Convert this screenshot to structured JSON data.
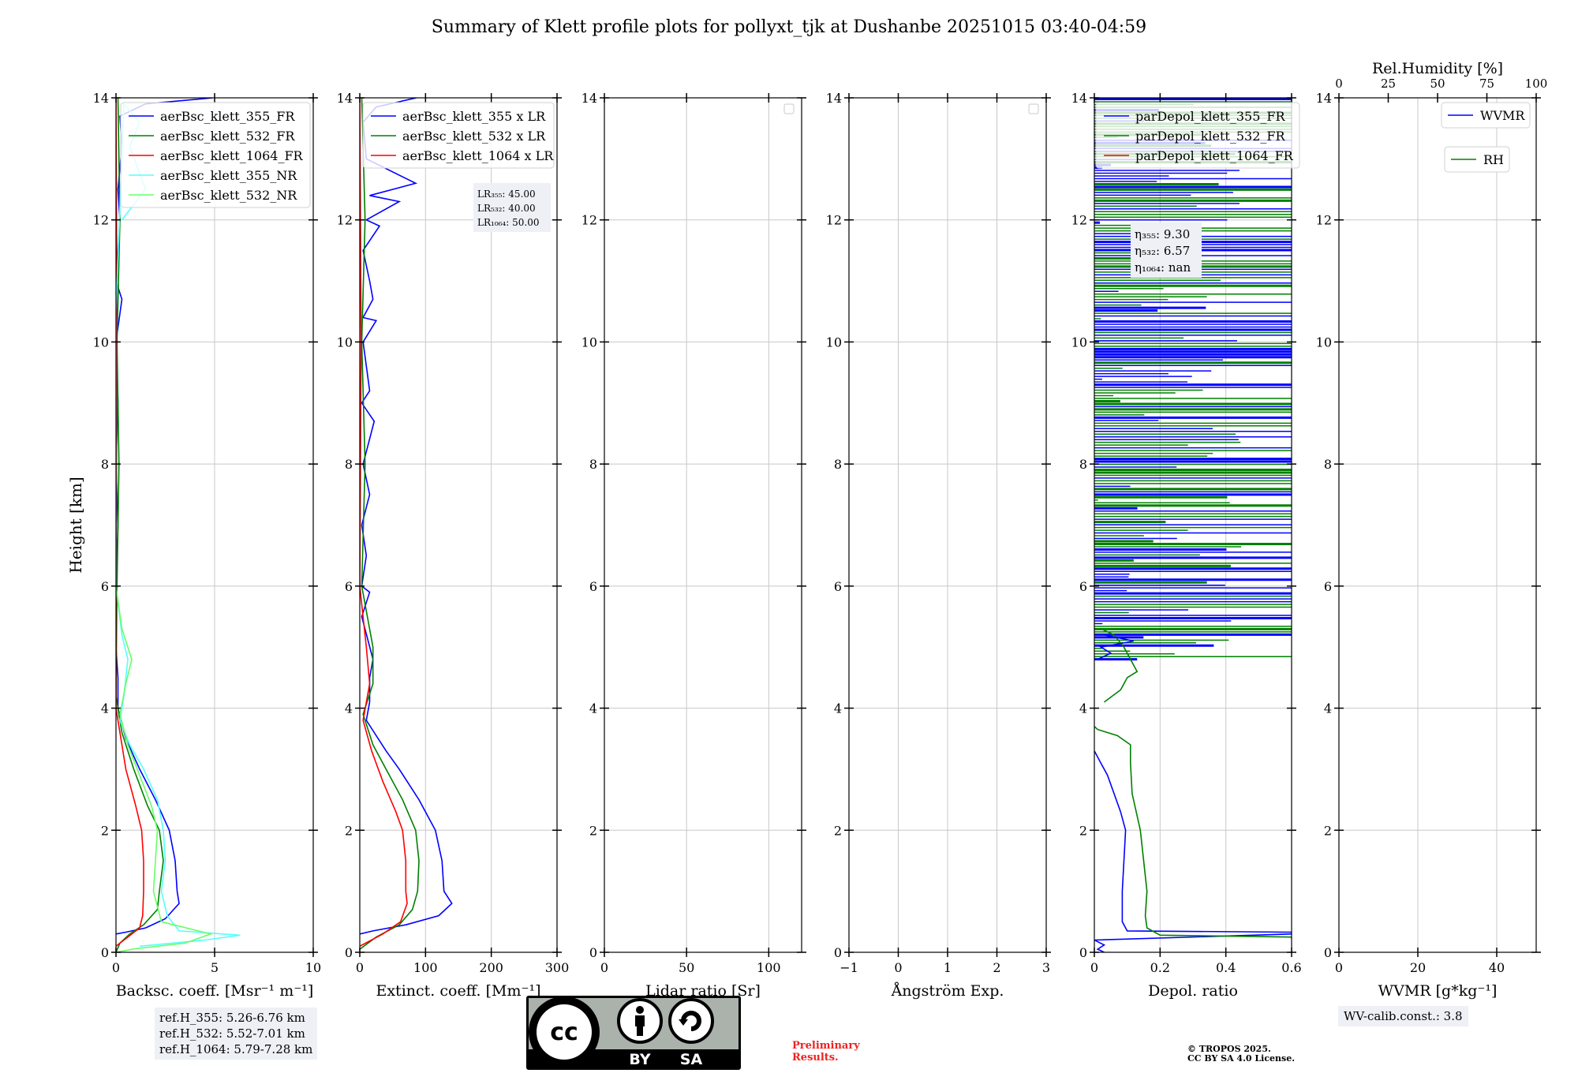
{
  "figure": {
    "suptitle": "Summary of Klett profile plots for pollyxt_tjk at Dushanbe 20251015 03:40-04:59",
    "ref_heights": [
      "ref.H_355: 5.26-6.76 km",
      "ref.H_532: 5.52-7.01 km",
      "ref.H_1064: 5.79-7.28 km"
    ],
    "wv_calib": "WV-calib.const.: 3.8",
    "preliminary": [
      "Preliminary",
      "Results."
    ],
    "copyright": [
      "© TROPOS 2025.",
      "CC BY SA 4.0 License."
    ],
    "license_badge": {
      "icons": [
        "cc-icon",
        "by-person-icon",
        "sa-icon"
      ],
      "labels": [
        "BY",
        "SA"
      ]
    }
  },
  "chart_data": [
    {
      "type": "line",
      "name": "backscatter",
      "xlabel": "Backsc. coeff. [Msr⁻¹ m⁻¹]",
      "ylabel": "Height [km]",
      "xlim": [
        0,
        10
      ],
      "ylim": [
        0,
        14
      ],
      "xticks": [
        0,
        5,
        10
      ],
      "yticks": [
        0,
        2,
        4,
        6,
        8,
        10,
        12,
        14
      ],
      "grid": true,
      "legend": "top-right",
      "series": [
        {
          "name": "aerBsc_klett_355_FR",
          "color": "#0000ff",
          "points": [
            [
              4.9,
              14
            ],
            [
              1.5,
              13.9
            ],
            [
              0.2,
              13.7
            ],
            [
              0.3,
              13.2
            ],
            [
              0.1,
              12.5
            ],
            [
              0.2,
              12
            ],
            [
              0,
              11
            ],
            [
              0.3,
              10.7
            ],
            [
              0,
              10
            ],
            [
              0.1,
              9
            ],
            [
              0,
              8
            ],
            [
              0.1,
              7
            ],
            [
              0,
              6
            ],
            [
              0,
              5
            ],
            [
              0.1,
              4.5
            ],
            [
              0.1,
              4
            ],
            [
              0.5,
              3.5
            ],
            [
              1.2,
              3
            ],
            [
              2,
              2.5
            ],
            [
              2.7,
              2
            ],
            [
              3,
              1.5
            ],
            [
              3.1,
              1
            ],
            [
              3.2,
              0.8
            ],
            [
              2.5,
              0.55
            ],
            [
              1.5,
              0.4
            ],
            [
              0.5,
              0.33
            ],
            [
              0,
              0.3
            ]
          ]
        },
        {
          "name": "aerBsc_klett_532_FR",
          "color": "#008000",
          "points": [
            [
              0.1,
              14
            ],
            [
              0.2,
              12
            ],
            [
              0.05,
              10
            ],
            [
              0.15,
              8
            ],
            [
              0.05,
              6
            ],
            [
              0,
              4.2
            ],
            [
              0.3,
              3.6
            ],
            [
              0.9,
              3
            ],
            [
              1.6,
              2.4
            ],
            [
              2.2,
              2
            ],
            [
              2.4,
              1.5
            ],
            [
              2.2,
              1
            ],
            [
              2.1,
              0.7
            ],
            [
              1.4,
              0.45
            ],
            [
              0.7,
              0.3
            ],
            [
              0.2,
              0.15
            ],
            [
              0,
              0
            ]
          ]
        },
        {
          "name": "aerBsc_klett_1064_FR",
          "color": "#ff0000",
          "points": [
            [
              0,
              14
            ],
            [
              0.05,
              10
            ],
            [
              0,
              6
            ],
            [
              0,
              4
            ],
            [
              0.2,
              3.6
            ],
            [
              0.5,
              3
            ],
            [
              1,
              2.4
            ],
            [
              1.3,
              2
            ],
            [
              1.4,
              1.5
            ],
            [
              1.4,
              1
            ],
            [
              1.35,
              0.6
            ],
            [
              1.2,
              0.4
            ],
            [
              0.6,
              0.25
            ],
            [
              0,
              0.1
            ]
          ]
        },
        {
          "name": "aerBsc_klett_355_NR",
          "color": "#55ffff",
          "points": [
            [
              0.3,
              12
            ],
            [
              1.5,
              12.5
            ],
            [
              0.7,
              13.2
            ],
            [
              1.2,
              13.6
            ],
            [
              0.4,
              13.9
            ],
            [
              0,
              10.5
            ],
            [
              0,
              8
            ],
            [
              0,
              6
            ],
            [
              0.3,
              5.2
            ],
            [
              0.6,
              4.8
            ],
            [
              0.4,
              4.2
            ],
            [
              0.2,
              3.8
            ],
            [
              0.7,
              3.4
            ],
            [
              1.4,
              3
            ],
            [
              2.1,
              2.5
            ],
            [
              2.4,
              2
            ],
            [
              2.5,
              1.5
            ],
            [
              2.3,
              1
            ],
            [
              2.6,
              0.6
            ],
            [
              3.2,
              0.35
            ],
            [
              6.3,
              0.28
            ],
            [
              4.5,
              0.2
            ],
            [
              1.2,
              0.1
            ]
          ]
        },
        {
          "name": "aerBsc_klett_532_NR",
          "color": "#66ff66",
          "points": [
            [
              0,
              6
            ],
            [
              0.3,
              5.3
            ],
            [
              0.8,
              4.8
            ],
            [
              0.5,
              4.4
            ],
            [
              0.2,
              3.9
            ],
            [
              0.6,
              3.4
            ],
            [
              1.2,
              2.9
            ],
            [
              1.8,
              2.4
            ],
            [
              2.1,
              2
            ],
            [
              2,
              1.5
            ],
            [
              1.9,
              1
            ],
            [
              2.3,
              0.5
            ],
            [
              4.8,
              0.3
            ],
            [
              3.5,
              0.15
            ],
            [
              1,
              0.06
            ],
            [
              0,
              0
            ]
          ]
        }
      ],
      "annotations": []
    },
    {
      "type": "line",
      "name": "extinction",
      "xlabel": "Extinct. coeff. [Mm⁻¹]",
      "xlim": [
        0,
        300
      ],
      "ylim": [
        0,
        14
      ],
      "xticks": [
        0,
        100,
        200,
        300
      ],
      "yticks": [
        0,
        2,
        4,
        6,
        8,
        10,
        12,
        14
      ],
      "grid": true,
      "legend": "top-right",
      "series": [
        {
          "name": "aerBsc_klett_355 x LR",
          "color": "#0000ff",
          "points": [
            [
              86,
              14
            ],
            [
              25,
              13.85
            ],
            [
              5,
              13.6
            ],
            [
              10,
              13
            ],
            [
              85,
              12.6
            ],
            [
              15,
              12.4
            ],
            [
              60,
              12.3
            ],
            [
              10,
              12
            ],
            [
              30,
              11.9
            ],
            [
              5,
              11.5
            ],
            [
              15,
              11
            ],
            [
              20,
              10.7
            ],
            [
              5,
              10.4
            ],
            [
              25,
              10.35
            ],
            [
              5,
              10
            ],
            [
              15,
              9.2
            ],
            [
              3,
              9
            ],
            [
              22,
              8.7
            ],
            [
              5,
              8
            ],
            [
              15,
              7.5
            ],
            [
              3,
              7
            ],
            [
              10,
              6.5
            ],
            [
              3,
              6
            ],
            [
              15,
              5.9
            ],
            [
              3,
              5.5
            ],
            [
              20,
              4.8
            ],
            [
              15,
              4.5
            ],
            [
              15,
              4.1
            ],
            [
              10,
              3.8
            ],
            [
              40,
              3.3
            ],
            [
              60,
              3
            ],
            [
              90,
              2.5
            ],
            [
              115,
              2
            ],
            [
              125,
              1.5
            ],
            [
              128,
              1
            ],
            [
              140,
              0.8
            ],
            [
              120,
              0.6
            ],
            [
              70,
              0.45
            ],
            [
              20,
              0.35
            ],
            [
              0,
              0.3
            ]
          ]
        },
        {
          "name": "aerBsc_klett_532 x LR",
          "color": "#008000",
          "points": [
            [
              3,
              14
            ],
            [
              8,
              12
            ],
            [
              3,
              10
            ],
            [
              8,
              8
            ],
            [
              3,
              6
            ],
            [
              20,
              5
            ],
            [
              20,
              4.4
            ],
            [
              5,
              3.9
            ],
            [
              20,
              3.4
            ],
            [
              40,
              3
            ],
            [
              65,
              2.5
            ],
            [
              85,
              2
            ],
            [
              90,
              1.5
            ],
            [
              88,
              1
            ],
            [
              80,
              0.7
            ],
            [
              60,
              0.45
            ],
            [
              25,
              0.25
            ],
            [
              0,
              0.05
            ]
          ]
        },
        {
          "name": "aerBsc_klett_1064 x LR",
          "color": "#ff0000",
          "points": [
            [
              0,
              14
            ],
            [
              2,
              10
            ],
            [
              0,
              6
            ],
            [
              10,
              5
            ],
            [
              15,
              4.4
            ],
            [
              5,
              3.8
            ],
            [
              18,
              3.3
            ],
            [
              35,
              2.8
            ],
            [
              55,
              2.3
            ],
            [
              65,
              2
            ],
            [
              70,
              1.5
            ],
            [
              70,
              1
            ],
            [
              72,
              0.8
            ],
            [
              62,
              0.5
            ],
            [
              35,
              0.3
            ],
            [
              0,
              0.1
            ]
          ]
        }
      ],
      "annotations": [
        "LR₃₅₅: 45.00",
        "LR₅₃₂: 40.00",
        "LR₁₀₆₄: 50.00"
      ]
    },
    {
      "type": "line",
      "name": "lidar_ratio",
      "xlabel": "Lidar ratio [Sr]",
      "xlim": [
        0,
        120
      ],
      "ylim": [
        0,
        14
      ],
      "xticks": [
        0,
        50,
        100
      ],
      "yticks": [
        0,
        2,
        4,
        6,
        8,
        10,
        12,
        14
      ],
      "grid": true,
      "legend": "top-right",
      "series": [],
      "annotations": []
    },
    {
      "type": "line",
      "name": "angstrom",
      "xlabel": "Ångström Exp.",
      "xlim": [
        -1,
        3
      ],
      "ylim": [
        0,
        14
      ],
      "xticks": [
        -1,
        0,
        1,
        2,
        3
      ],
      "yticks": [
        0,
        2,
        4,
        6,
        8,
        10,
        12,
        14
      ],
      "grid": true,
      "legend": "top-right",
      "series": [],
      "annotations": []
    },
    {
      "type": "line",
      "name": "depol",
      "xlabel": "Depol. ratio",
      "xlim": [
        0,
        0.6
      ],
      "ylim": [
        0,
        14
      ],
      "xticks": [
        0,
        0.2,
        0.4,
        0.6
      ],
      "yticks": [
        0,
        2,
        4,
        6,
        8,
        10,
        12,
        14
      ],
      "grid": true,
      "legend": "top-left",
      "series": [
        {
          "name": "parDepol_klett_355_FR",
          "color": "#0000ff",
          "points": [
            [
              0.03,
              0
            ],
            [
              0.01,
              0.05
            ],
            [
              0.03,
              0.12
            ],
            [
              0,
              0.2
            ],
            [
              0.6,
              0.3
            ],
            [
              0.6,
              0.33
            ],
            [
              0.1,
              0.35
            ],
            [
              0.085,
              0.5
            ],
            [
              0.085,
              1
            ],
            [
              0.09,
              1.5
            ],
            [
              0.095,
              2
            ],
            [
              0.08,
              2.3
            ],
            [
              0.06,
              2.6
            ],
            [
              0.04,
              2.9
            ],
            [
              0.02,
              3.1
            ],
            [
              0,
              3.3
            ]
          ]
        },
        {
          "name": "parDepol_klett_532_FR",
          "color": "#008000",
          "points": [
            [
              0.6,
              0.22
            ],
            [
              0.6,
              0.25
            ],
            [
              0.2,
              0.28
            ],
            [
              0.16,
              0.4
            ],
            [
              0.155,
              0.6
            ],
            [
              0.16,
              1
            ],
            [
              0.15,
              1.5
            ],
            [
              0.14,
              2
            ],
            [
              0.115,
              2.6
            ],
            [
              0.11,
              3.1
            ],
            [
              0.11,
              3.4
            ],
            [
              0.07,
              3.55
            ],
            [
              0.01,
              3.65
            ],
            [
              0,
              3.7
            ]
          ]
        },
        {
          "name": "parDepol_klett_1064_FR",
          "color": "#ff0000",
          "points": []
        }
      ],
      "annotations": [
        "η₃₅₅: 9.30",
        "η₅₃₂: 6.57",
        "η₁₀₆₄: nan"
      ]
    },
    {
      "type": "line",
      "name": "wvmr",
      "xlabel": "WVMR [g*kg⁻¹]",
      "x2label": "Rel.Humidity [%]",
      "xlim": [
        0,
        50
      ],
      "x2lim": [
        0,
        100
      ],
      "ylim": [
        0,
        14
      ],
      "xticks": [
        0,
        20,
        40
      ],
      "x2ticks": [
        0,
        25,
        50,
        75,
        100
      ],
      "yticks": [
        0,
        2,
        4,
        6,
        8,
        10,
        12,
        14
      ],
      "grid": true,
      "legend": "top-right",
      "series": [
        {
          "name": "WVMR",
          "color": "#0000ff",
          "points": []
        },
        {
          "name": "RH",
          "color": "#008000",
          "points": []
        }
      ],
      "annotations": []
    }
  ]
}
